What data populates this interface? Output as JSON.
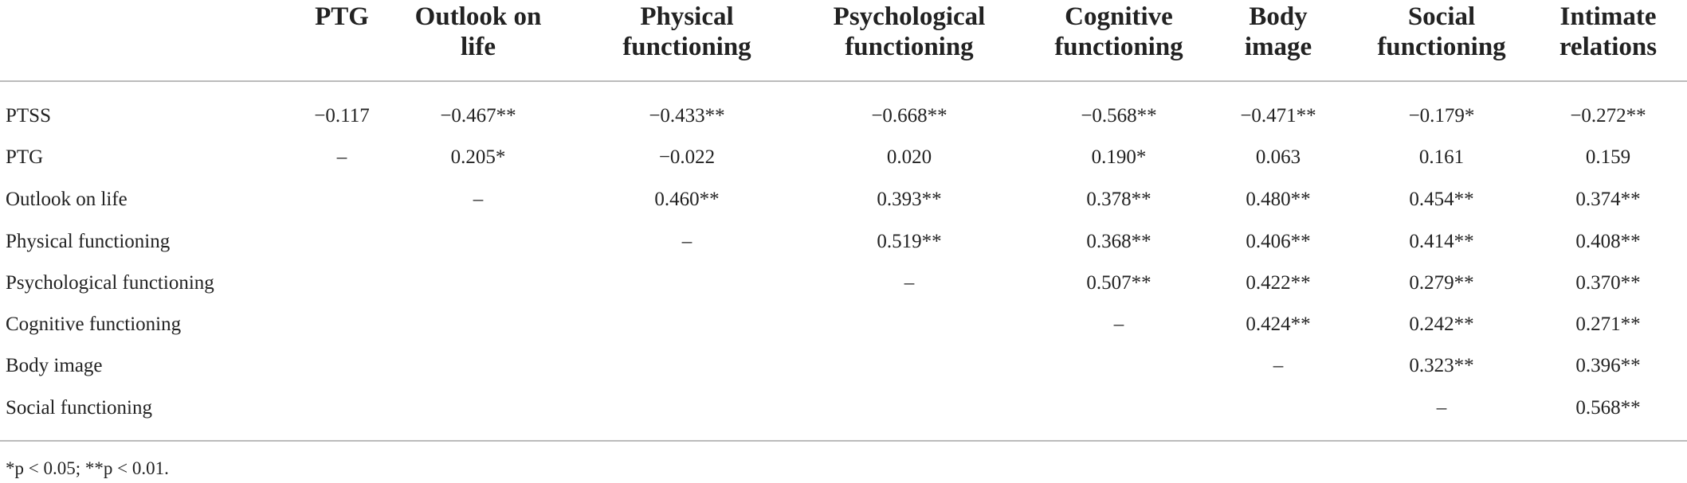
{
  "table": {
    "columns": [
      [
        "PTG"
      ],
      [
        "Outlook on",
        "life"
      ],
      [
        "Physical",
        "functioning"
      ],
      [
        "Psychological",
        "functioning"
      ],
      [
        "Cognitive",
        "functioning"
      ],
      [
        "Body",
        "image"
      ],
      [
        "Social",
        "functioning"
      ],
      [
        "Intimate",
        "relations"
      ]
    ],
    "rows": [
      {
        "label": "PTSS",
        "cells": [
          "−0.117",
          "−0.467**",
          "−0.433**",
          "−0.668**",
          "−0.568**",
          "−0.471**",
          "−0.179*",
          "−0.272**"
        ]
      },
      {
        "label": "PTG",
        "cells": [
          "–",
          "0.205*",
          "−0.022",
          "0.020",
          "0.190*",
          "0.063",
          "0.161",
          "0.159"
        ]
      },
      {
        "label": "Outlook on life",
        "cells": [
          null,
          "–",
          "0.460**",
          "0.393**",
          "0.378**",
          "0.480**",
          "0.454**",
          "0.374**"
        ]
      },
      {
        "label": "Physical functioning",
        "cells": [
          null,
          null,
          "–",
          "0.519**",
          "0.368**",
          "0.406**",
          "0.414**",
          "0.408**"
        ]
      },
      {
        "label": "Psychological functioning",
        "cells": [
          null,
          null,
          null,
          "–",
          "0.507**",
          "0.422**",
          "0.279**",
          "0.370**"
        ]
      },
      {
        "label": "Cognitive functioning",
        "cells": [
          null,
          null,
          null,
          null,
          "–",
          "0.424**",
          "0.242**",
          "0.271**"
        ]
      },
      {
        "label": "Body image",
        "cells": [
          null,
          null,
          null,
          null,
          null,
          "–",
          "0.323**",
          "0.396**"
        ]
      },
      {
        "label": "Social functioning",
        "cells": [
          null,
          null,
          null,
          null,
          null,
          null,
          "–",
          "0.568**"
        ]
      }
    ],
    "footnote": "*p < 0.05; **p < 0.01."
  }
}
